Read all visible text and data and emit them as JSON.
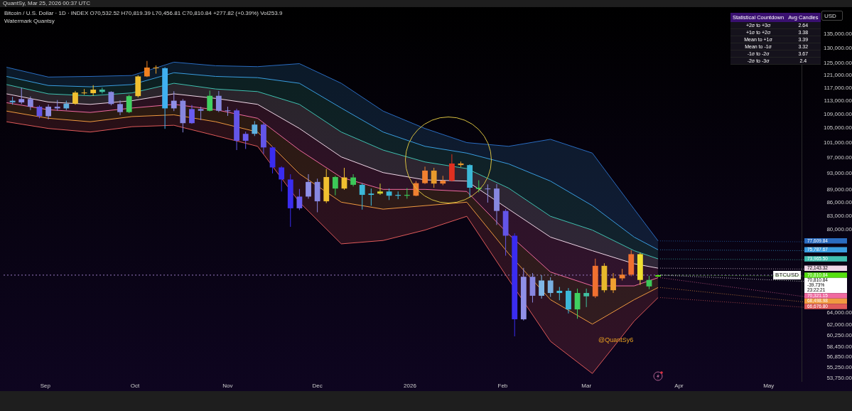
{
  "chart_data": [
    {
      "type": "candlestick",
      "title": "Bitcoin / U.S. Dollar · 1D · INDEX  O70,532.52 H70,819.39 L70,456.81 C70,810.84 +277.82 (+0.39%) Vol253.9",
      "subtitle": "Watermark Quantsy",
      "ylabel": "USD",
      "annotations": [
        "QuantSy, Mar 25, 2026 00:37 UTC",
        "@QuantSy6",
        {
          "text": "70,810.84",
          "x": "2026-03-25",
          "y": 70810.84
        },
        {
          "text": "70,810.84",
          "x": "2026-03-25",
          "y": 70810.84
        },
        {
          "text": "-39.73%",
          "x": "2026-03-25",
          "y": 70810.84
        },
        {
          "text": "23:22:21",
          "x": "2026-03-25",
          "y": 70810.84
        }
      ],
      "log": true,
      "xlim": [
        "2025-08-18",
        "2026-05-12"
      ],
      "xticks": [
        {
          "value": "2025-09-01",
          "label": "Sep"
        },
        {
          "value": "2025-10-01",
          "label": "Oct"
        },
        {
          "value": "2025-11-01",
          "label": "Nov"
        },
        {
          "value": "2025-12-01",
          "label": "Dec"
        },
        {
          "value": "2026-01-01",
          "label": "2026"
        },
        {
          "value": "2026-02-01",
          "label": "Feb"
        },
        {
          "value": "2026-03-01",
          "label": "Mar"
        },
        {
          "value": "2026-04-01",
          "label": "Apr"
        },
        {
          "value": "2026-05-01",
          "label": "May"
        }
      ],
      "ylim": [
        53300,
        142800
      ],
      "yticks": [
        {
          "value": 135000,
          "label": "135,000.00"
        },
        {
          "value": 130000,
          "label": "130,000.00"
        },
        {
          "value": 125000,
          "label": "125,000.00"
        },
        {
          "value": 121000,
          "label": "121,000.00"
        },
        {
          "value": 117000,
          "label": "117,000.00"
        },
        {
          "value": 113000,
          "label": "113,000.00"
        },
        {
          "value": 109000,
          "label": "109,000.00"
        },
        {
          "value": 105000,
          "label": "105,000.00"
        },
        {
          "value": 101000,
          "label": "101,000.00"
        },
        {
          "value": 97000,
          "label": "97,000.00"
        },
        {
          "value": 93000,
          "label": "93,000.00"
        },
        {
          "value": 89000,
          "label": "89,000.00"
        },
        {
          "value": 86000,
          "label": "86,000.00"
        },
        {
          "value": 83000,
          "label": "83,000.00"
        },
        {
          "value": 80000,
          "label": "80,000.00"
        },
        {
          "value": 64000,
          "label": "64,000.00"
        },
        {
          "value": 62000,
          "label": "62,000.00"
        },
        {
          "value": 60250,
          "label": "60,250.00"
        },
        {
          "value": 58450,
          "label": "58,450.00"
        },
        {
          "value": 56850,
          "label": "56,850.00"
        },
        {
          "value": 55250,
          "label": "55,250.00"
        },
        {
          "value": 53750,
          "label": "53,750.00"
        }
      ],
      "ref_lines": [
        {
          "axis": "y",
          "value": 70810.84,
          "label": "BTCUSD",
          "line_style": "dotted",
          "color": "#9a7cc4"
        }
      ],
      "x": [
        "2025-08-21",
        "2025-08-24",
        "2025-08-27",
        "2025-08-30",
        "2025-09-02",
        "2025-09-05",
        "2025-09-08",
        "2025-09-11",
        "2025-09-14",
        "2025-09-17",
        "2025-09-20",
        "2025-09-23",
        "2025-09-26",
        "2025-09-29",
        "2025-10-02",
        "2025-10-05",
        "2025-10-08",
        "2025-10-11",
        "2025-10-14",
        "2025-10-17",
        "2025-10-20",
        "2025-10-23",
        "2025-10-26",
        "2025-10-29",
        "2025-11-01",
        "2025-11-04",
        "2025-11-07",
        "2025-11-10",
        "2025-11-13",
        "2025-11-16",
        "2025-11-19",
        "2025-11-22",
        "2025-11-25",
        "2025-11-28",
        "2025-12-01",
        "2025-12-04",
        "2025-12-07",
        "2025-12-10",
        "2025-12-13",
        "2025-12-16",
        "2025-12-19",
        "2025-12-22",
        "2025-12-25",
        "2025-12-28",
        "2025-12-31",
        "2026-01-03",
        "2026-01-06",
        "2026-01-09",
        "2026-01-12",
        "2026-01-15",
        "2026-01-18",
        "2026-01-21",
        "2026-01-24",
        "2026-01-27",
        "2026-01-30",
        "2026-02-02",
        "2026-02-05",
        "2026-02-08",
        "2026-02-11",
        "2026-02-14",
        "2026-02-17",
        "2026-02-20",
        "2026-02-23",
        "2026-02-26",
        "2026-03-01",
        "2026-03-04",
        "2026-03-07",
        "2026-03-10",
        "2026-03-13",
        "2026-03-16",
        "2026-03-19",
        "2026-03-22",
        "2026-03-25"
      ],
      "ohlc": [
        [
          113000,
          114200,
          111800,
          112500
        ],
        [
          112500,
          117000,
          112000,
          113500
        ],
        [
          113500,
          114300,
          110200,
          111200
        ],
        [
          111200,
          111600,
          107800,
          108400
        ],
        [
          108400,
          111900,
          107500,
          111200
        ],
        [
          111200,
          113200,
          110000,
          110700
        ],
        [
          110700,
          113000,
          110200,
          112100
        ],
        [
          112100,
          116000,
          111800,
          115500
        ],
        [
          115500,
          116600,
          114800,
          115300
        ],
        [
          115300,
          117800,
          114500,
          116400
        ],
        [
          116400,
          117000,
          115200,
          115700
        ],
        [
          115700,
          115900,
          111600,
          112000
        ],
        [
          112000,
          113100,
          108700,
          109600
        ],
        [
          109600,
          114800,
          109300,
          114400
        ],
        [
          114400,
          121000,
          114000,
          120600
        ],
        [
          120600,
          125700,
          120400,
          123500
        ],
        [
          123500,
          124200,
          121500,
          123300
        ],
        [
          123300,
          123600,
          104800,
          110700
        ],
        [
          110700,
          115900,
          109900,
          113000
        ],
        [
          113000,
          113500,
          103800,
          106400
        ],
        [
          106400,
          111700,
          106200,
          110500
        ],
        [
          110500,
          111200,
          107300,
          110000
        ],
        [
          110000,
          116100,
          109800,
          114500
        ],
        [
          114500,
          116000,
          109600,
          110000
        ],
        [
          110000,
          111200,
          108500,
          110100
        ],
        [
          110100,
          110600,
          99000,
          101500
        ],
        [
          101500,
          104000,
          99300,
          103400
        ],
        [
          103400,
          107000,
          102800,
          106000
        ],
        [
          106000,
          106500,
          98000,
          99700
        ],
        [
          99700,
          100000,
          93000,
          94500
        ],
        [
          94500,
          94800,
          88600,
          91500
        ],
        [
          91500,
          92800,
          80600,
          84700
        ],
        [
          84700,
          89200,
          84300,
          87400
        ],
        [
          87400,
          92800,
          86900,
          90900
        ],
        [
          90900,
          91700,
          83800,
          86300
        ],
        [
          86300,
          94100,
          85900,
          92100
        ],
        [
          92100,
          92400,
          87700,
          89300
        ],
        [
          89300,
          94400,
          89000,
          92000
        ],
        [
          92000,
          92800,
          89800,
          90200
        ],
        [
          90200,
          90600,
          84400,
          87800
        ],
        [
          87800,
          89300,
          85300,
          88100
        ],
        [
          88100,
          90500,
          87800,
          88600
        ],
        [
          88600,
          89300,
          86600,
          87600
        ],
        [
          87600,
          88600,
          86800,
          87800
        ],
        [
          87800,
          89400,
          86900,
          87600
        ],
        [
          87600,
          91100,
          87500,
          90600
        ],
        [
          90600,
          94700,
          90400,
          93700
        ],
        [
          93700,
          94400,
          89500,
          90500
        ],
        [
          90500,
          92400,
          90100,
          91200
        ],
        [
          91200,
          97900,
          91000,
          95500
        ],
        [
          95500,
          96000,
          94600,
          95100
        ],
        [
          95100,
          95300,
          87200,
          89500
        ],
        [
          89500,
          91300,
          88400,
          89200
        ],
        [
          89200,
          90300,
          86000,
          89300
        ],
        [
          89300,
          90400,
          81000,
          84100
        ],
        [
          84100,
          84500,
          74600,
          78700
        ],
        [
          78700,
          79200,
          60100,
          62900
        ],
        [
          62900,
          72200,
          62700,
          70500
        ],
        [
          70500,
          71200,
          65800,
          67000
        ],
        [
          67000,
          70800,
          66500,
          69800
        ],
        [
          69800,
          70400,
          66800,
          67500
        ],
        [
          67500,
          68600,
          66200,
          67900
        ],
        [
          67900,
          68400,
          63900,
          64600
        ],
        [
          64600,
          68300,
          63000,
          67500
        ],
        [
          67500,
          68300,
          65000,
          66900
        ],
        [
          66900,
          74000,
          66600,
          72600
        ],
        [
          72600,
          73100,
          67600,
          68000
        ],
        [
          68000,
          71200,
          67500,
          70200
        ],
        [
          70200,
          72000,
          69800,
          70900
        ],
        [
          70900,
          75700,
          70600,
          74900
        ],
        [
          74900,
          75200,
          69000,
          69900
        ],
        [
          69900,
          70700,
          68200,
          68700
        ],
        [
          70532.52,
          70819.39,
          70456.81,
          70810.84
        ]
      ],
      "colors": [
        "#5aa8d8",
        "#8f8fe8",
        "#8787e0",
        "#6355e8",
        "#8f8fe8",
        "#8787e0",
        "#5fb0e0",
        "#f0c030",
        "#f0b030",
        "#f0c030",
        "#40c0a0",
        "#8787e0",
        "#8787e0",
        "#40d060",
        "#f0c030",
        "#f08020",
        "#f0a020",
        "#40b0f0",
        "#8f8fe8",
        "#8787e0",
        "#6a5cf0",
        "#8787e0",
        "#40d060",
        "#8787e0",
        "#8f8fe8",
        "#6355e8",
        "#6a5cf0",
        "#5fb0e0",
        "#6355e8",
        "#3a2cf0",
        "#3a2cf0",
        "#3a2cf0",
        "#6a5cf0",
        "#8f8fe8",
        "#8787e0",
        "#f0c030",
        "#3cc858",
        "#f0c030",
        "#3cc858",
        "#3cb8d8",
        "#40c0e0",
        "#d0d030",
        "#3cb8d8",
        "#40c0e0",
        "#3cc858",
        "#f08030",
        "#f08030",
        "#e89a2c",
        "#f08030",
        "#e03020",
        "#e89a2c",
        "#3cb8d8",
        "#3cc858",
        "#8f8fe8",
        "#8787e0",
        "#6355e8",
        "#3a2cf0",
        "#8f8fe8",
        "#8787e0",
        "#7fb8e8",
        "#78b0e0",
        "#40c0e0",
        "#3cb8d8",
        "#40d060",
        "#40c0a0",
        "#f07030",
        "#e8b82c",
        "#f0a030",
        "#f08030",
        "#f07030",
        "#f0e030",
        "#3cc858",
        "#55e010"
      ],
      "series": [
        {
          "type": "line",
          "color": "#2a6cc0",
          "x": [
            "2025-08-19",
            "2025-09-02",
            "2025-09-16",
            "2025-09-30",
            "2025-10-14",
            "2025-10-28",
            "2025-11-11",
            "2025-11-25",
            "2025-12-09",
            "2025-12-23",
            "2026-01-06",
            "2026-01-20",
            "2026-02-03",
            "2026-02-17",
            "2026-03-03",
            "2026-03-17",
            "2026-03-25"
          ],
          "values": [
            123600,
            120400,
            120600,
            120900,
            125300,
            124100,
            123800,
            124800,
            118400,
            109900,
            104900,
            101000,
            100000,
            101900,
            98200,
            84500,
            77609.84
          ],
          "value_labels": [
            null,
            null,
            null,
            null,
            null,
            null,
            null,
            null,
            null,
            null,
            null,
            null,
            null,
            null,
            null,
            null,
            "77,609.84"
          ]
        },
        {
          "type": "line",
          "color": "#3a9ee0",
          "x": [
            "2025-08-19",
            "2025-09-02",
            "2025-09-16",
            "2025-09-30",
            "2025-10-14",
            "2025-10-28",
            "2025-11-11",
            "2025-11-25",
            "2025-12-09",
            "2025-12-23",
            "2026-01-06",
            "2026-01-20",
            "2026-02-03",
            "2026-02-17",
            "2026-03-03",
            "2026-03-17",
            "2026-03-25"
          ],
          "values": [
            120600,
            117700,
            117300,
            118000,
            121800,
            120600,
            120200,
            118400,
            110800,
            103900,
            100000,
            98200,
            95400,
            91100,
            85300,
            78400,
            75787.67
          ],
          "lower": [
            120600,
            117700,
            117300,
            118000,
            121800,
            120600,
            120200,
            118400,
            110800,
            103900,
            100000,
            98200,
            95400,
            91100,
            85300,
            78400,
            75787.67
          ],
          "upper": [
            123600,
            120400,
            120600,
            120900,
            125300,
            124100,
            123800,
            124800,
            118400,
            109900,
            104900,
            101000,
            100000,
            101900,
            98200,
            84500,
            77609.84
          ],
          "value_labels": [
            null,
            null,
            null,
            null,
            null,
            null,
            null,
            null,
            null,
            null,
            null,
            null,
            null,
            null,
            null,
            null,
            "75,787.67"
          ]
        },
        {
          "type": "line",
          "color": "#40c0b0",
          "x": [
            "2025-08-19",
            "2025-09-02",
            "2025-09-16",
            "2025-09-30",
            "2025-10-14",
            "2025-10-28",
            "2025-11-11",
            "2025-11-25",
            "2025-12-09",
            "2025-12-23",
            "2026-01-06",
            "2026-01-20",
            "2026-02-03",
            "2026-02-17",
            "2026-03-03",
            "2026-03-17",
            "2026-03-25"
          ],
          "values": [
            118000,
            115100,
            114500,
            115400,
            118400,
            116600,
            115800,
            111900,
            103900,
            99000,
            95900,
            94200,
            89400,
            82900,
            79900,
            75600,
            73965.5
          ],
          "lower": [
            118000,
            115100,
            114500,
            115400,
            118400,
            116600,
            115800,
            111900,
            103900,
            99000,
            95900,
            94200,
            89400,
            82900,
            79900,
            75600,
            73965.5
          ],
          "upper": [
            120600,
            117700,
            117300,
            118000,
            121800,
            120600,
            120200,
            118400,
            110800,
            103900,
            100000,
            98200,
            95400,
            91100,
            85300,
            78400,
            75787.67
          ],
          "value_labels": [
            null,
            null,
            null,
            null,
            null,
            null,
            null,
            null,
            null,
            null,
            null,
            null,
            null,
            null,
            null,
            null,
            "73,965.50"
          ]
        },
        {
          "type": "line",
          "color": "#f0d8e8",
          "x": [
            "2025-08-19",
            "2025-09-02",
            "2025-09-16",
            "2025-09-30",
            "2025-10-14",
            "2025-10-28",
            "2025-11-11",
            "2025-11-25",
            "2025-12-09",
            "2025-12-23",
            "2026-01-06",
            "2026-01-20",
            "2026-02-03",
            "2026-02-17",
            "2026-03-03",
            "2026-03-17",
            "2026-03-25"
          ],
          "values": [
            115100,
            112600,
            111900,
            113000,
            115100,
            113700,
            111900,
            104900,
            97200,
            93200,
            91400,
            91100,
            84500,
            78400,
            75600,
            73000,
            72143.32
          ],
          "lower": [
            115100,
            112600,
            111900,
            113000,
            115100,
            113700,
            111900,
            104900,
            97200,
            93200,
            91400,
            91100,
            84500,
            78400,
            75600,
            73000,
            72143.32
          ],
          "upper": [
            118000,
            115100,
            114500,
            115400,
            118400,
            116600,
            115800,
            111900,
            103900,
            99000,
            95900,
            94200,
            89400,
            82900,
            79900,
            75600,
            73965.5
          ],
          "value_labels": [
            null,
            null,
            null,
            null,
            null,
            null,
            null,
            null,
            null,
            null,
            null,
            null,
            null,
            null,
            null,
            null,
            "72,143.32"
          ]
        },
        {
          "type": "line",
          "color": "#f06aa0",
          "x": [
            "2025-08-19",
            "2025-09-02",
            "2025-09-16",
            "2025-09-30",
            "2025-10-14",
            "2025-10-28",
            "2025-11-11",
            "2025-11-25",
            "2025-12-09",
            "2025-12-23",
            "2026-01-06",
            "2026-01-20",
            "2026-02-03",
            "2026-02-17",
            "2026-03-03",
            "2026-03-17",
            "2026-03-25"
          ],
          "values": [
            112400,
            110300,
            109500,
            110800,
            111900,
            110300,
            107800,
            99000,
            92000,
            89100,
            89100,
            88600,
            79000,
            71400,
            68800,
            68800,
            70321.15
          ],
          "lower": [
            112400,
            110300,
            109500,
            110800,
            111900,
            110300,
            107800,
            99000,
            92000,
            89100,
            89100,
            88600,
            79000,
            71400,
            68800,
            68800,
            70321.15
          ],
          "upper": [
            115100,
            112600,
            111900,
            113000,
            115100,
            113700,
            111900,
            104900,
            97200,
            93200,
            91400,
            91100,
            84500,
            78400,
            75600,
            73000,
            72143.32
          ],
          "value_labels": [
            null,
            null,
            null,
            null,
            null,
            null,
            null,
            null,
            null,
            null,
            null,
            null,
            null,
            null,
            null,
            null,
            "70,321.15"
          ]
        },
        {
          "type": "line",
          "color": "#f09a40",
          "x": [
            "2025-08-19",
            "2025-09-02",
            "2025-09-16",
            "2025-09-30",
            "2025-10-14",
            "2025-10-28",
            "2025-11-11",
            "2025-11-25",
            "2025-12-09",
            "2025-12-23",
            "2026-01-06",
            "2026-01-20",
            "2026-02-03",
            "2026-02-17",
            "2026-03-03",
            "2026-03-17",
            "2026-03-25"
          ],
          "values": [
            109900,
            107800,
            106800,
            108300,
            108800,
            106800,
            103900,
            92900,
            86100,
            84500,
            85300,
            86100,
            75000,
            66300,
            62100,
            66300,
            68498.98
          ],
          "lower": [
            109900,
            107800,
            106800,
            108300,
            108800,
            106800,
            103900,
            92900,
            86100,
            84500,
            85300,
            86100,
            75000,
            66300,
            62100,
            66300,
            68498.98
          ],
          "upper": [
            112400,
            110300,
            109500,
            110800,
            111900,
            110300,
            107800,
            99000,
            92000,
            89100,
            89100,
            88600,
            79000,
            71400,
            68800,
            68800,
            70321.15
          ],
          "value_labels": [
            null,
            null,
            null,
            null,
            null,
            null,
            null,
            null,
            null,
            null,
            null,
            null,
            null,
            null,
            null,
            null,
            "68,498.98"
          ]
        },
        {
          "type": "line",
          "color": "#e05a5a",
          "x": [
            "2025-08-19",
            "2025-09-02",
            "2025-09-16",
            "2025-09-30",
            "2025-10-14",
            "2025-10-28",
            "2025-11-11",
            "2025-11-25",
            "2025-12-09",
            "2025-12-23",
            "2026-01-06",
            "2026-01-20",
            "2026-02-03",
            "2026-02-17",
            "2026-03-03",
            "2026-03-17",
            "2026-03-25"
          ],
          "values": [
            106800,
            104900,
            103900,
            105400,
            105800,
            102900,
            100000,
            86100,
            77000,
            77700,
            79900,
            82900,
            70000,
            59300,
            54400,
            62600,
            66676.8
          ],
          "lower": [
            106800,
            104900,
            103900,
            105400,
            105800,
            102900,
            100000,
            86100,
            77000,
            77700,
            79900,
            82900,
            70000,
            59300,
            54400,
            62600,
            66676.8
          ],
          "upper": [
            109900,
            107800,
            106800,
            108300,
            108800,
            106800,
            103900,
            92900,
            86100,
            84500,
            85300,
            86100,
            75000,
            66300,
            62100,
            66300,
            68498.98
          ],
          "value_labels": [
            null,
            null,
            null,
            null,
            null,
            null,
            null,
            null,
            null,
            null,
            null,
            null,
            null,
            null,
            null,
            null,
            "66,676.80"
          ]
        }
      ]
    },
    {
      "type": "other",
      "data_labels": true,
      "xlabel": "Statistical Countdown",
      "ylabel": "Avg Candles",
      "categories": [
        "+2σ to +3σ",
        "+1σ to +2σ",
        "Mean to +1σ",
        "Mean to -1σ",
        "-1σ to -2σ",
        "-2σ to -3σ"
      ],
      "values": [
        2.64,
        3.38,
        3.39,
        3.32,
        3.67,
        2.4
      ]
    }
  ]
}
